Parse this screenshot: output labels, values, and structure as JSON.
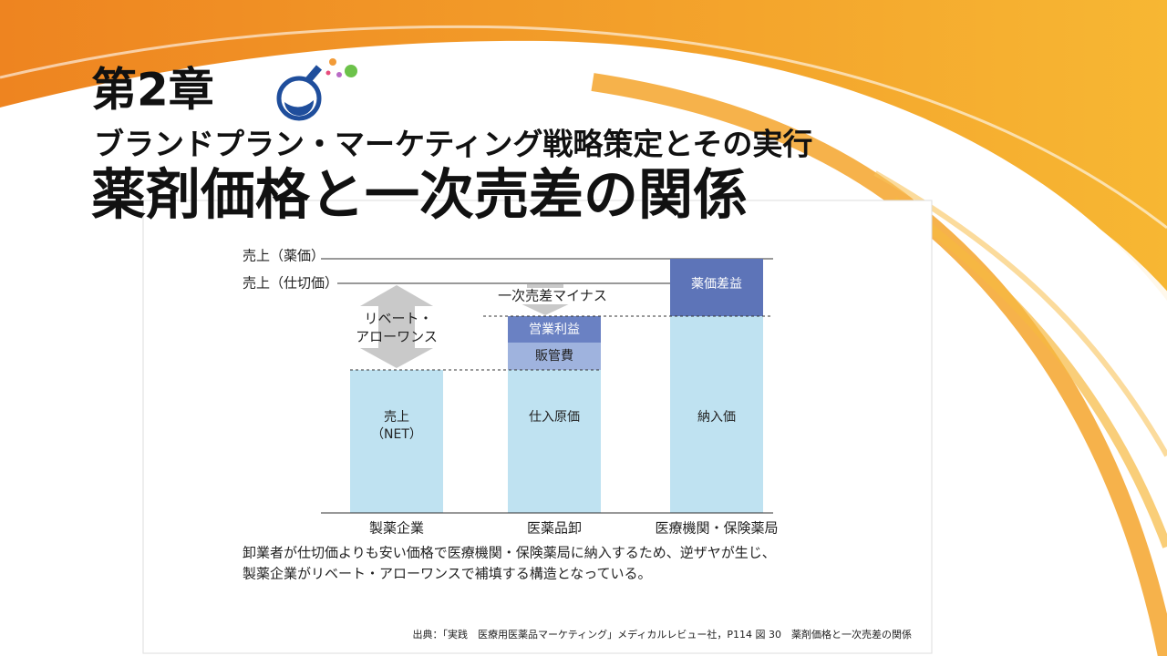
{
  "header": {
    "chapter": "第2章",
    "subtitle": "ブランドプラン・マーケティング戦略策定とその実行",
    "title": "薬剤価格と一次売差の関係"
  },
  "diagram": {
    "levels": [
      "売上（薬価）",
      "売上（仕切価）"
    ],
    "columns": [
      {
        "category": "製薬企業",
        "segments": [
          [
            "売上",
            "（NET）"
          ]
        ]
      },
      {
        "category": "医薬品卸",
        "segments": [
          [
            "仕入原価"
          ],
          [
            "販管費"
          ],
          [
            "営業利益"
          ]
        ]
      },
      {
        "category": "医療機関・保険薬局",
        "segments": [
          [
            "納入価"
          ],
          [
            "薬価差益"
          ]
        ]
      }
    ],
    "annotations": {
      "rebate": [
        "リベート・",
        "アローワンス"
      ],
      "margin": "一次売差マイナス"
    }
  },
  "caption": [
    "卸業者が仕切価よりも安い価格で医療機関・保険薬局に納入するため、逆ザヤが生じ、",
    "製薬企業がリベート・アローワンスで補填する構造となっている。"
  ],
  "source": "出典：「実践　医療用医薬品マーケティング」メディカルレビュー社，P114 図 30　薬剤価格と一次売差の関係"
}
